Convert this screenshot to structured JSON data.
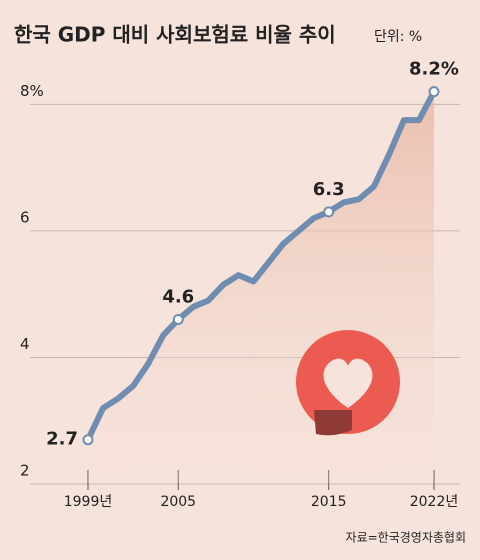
{
  "chart_data": {
    "type": "line",
    "title": "한국 GDP 대비 사회보험료 비율 추이",
    "subtitle": "단위: %",
    "source": "자료=한국경영자총협회",
    "categories": [
      "1999년",
      null,
      null,
      null,
      null,
      null,
      "2005",
      null,
      null,
      null,
      null,
      null,
      null,
      null,
      null,
      null,
      "2015",
      null,
      null,
      null,
      null,
      null,
      null,
      "2022년"
    ],
    "series": [
      {
        "color": "#6f8db0",
        "values": [
          2.7,
          3.2,
          3.35,
          3.55,
          3.9,
          4.35,
          4.6,
          4.8,
          4.9,
          5.15,
          5.3,
          5.2,
          5.5,
          5.8,
          6.0,
          6.2,
          6.3,
          6.45,
          6.5,
          6.7,
          7.2,
          7.75,
          7.75,
          8.2
        ],
        "value_labels": [
          "2.7",
          null,
          null,
          null,
          null,
          null,
          "4.6",
          null,
          null,
          null,
          null,
          null,
          null,
          null,
          null,
          null,
          "6.3",
          null,
          null,
          null,
          null,
          null,
          null,
          "8.2%"
        ]
      }
    ],
    "ylim": [
      2,
      8.4
    ],
    "yticks": [
      2,
      4,
      6,
      {
        "value": 8,
        "label": "8%"
      }
    ],
    "grid": true
  }
}
